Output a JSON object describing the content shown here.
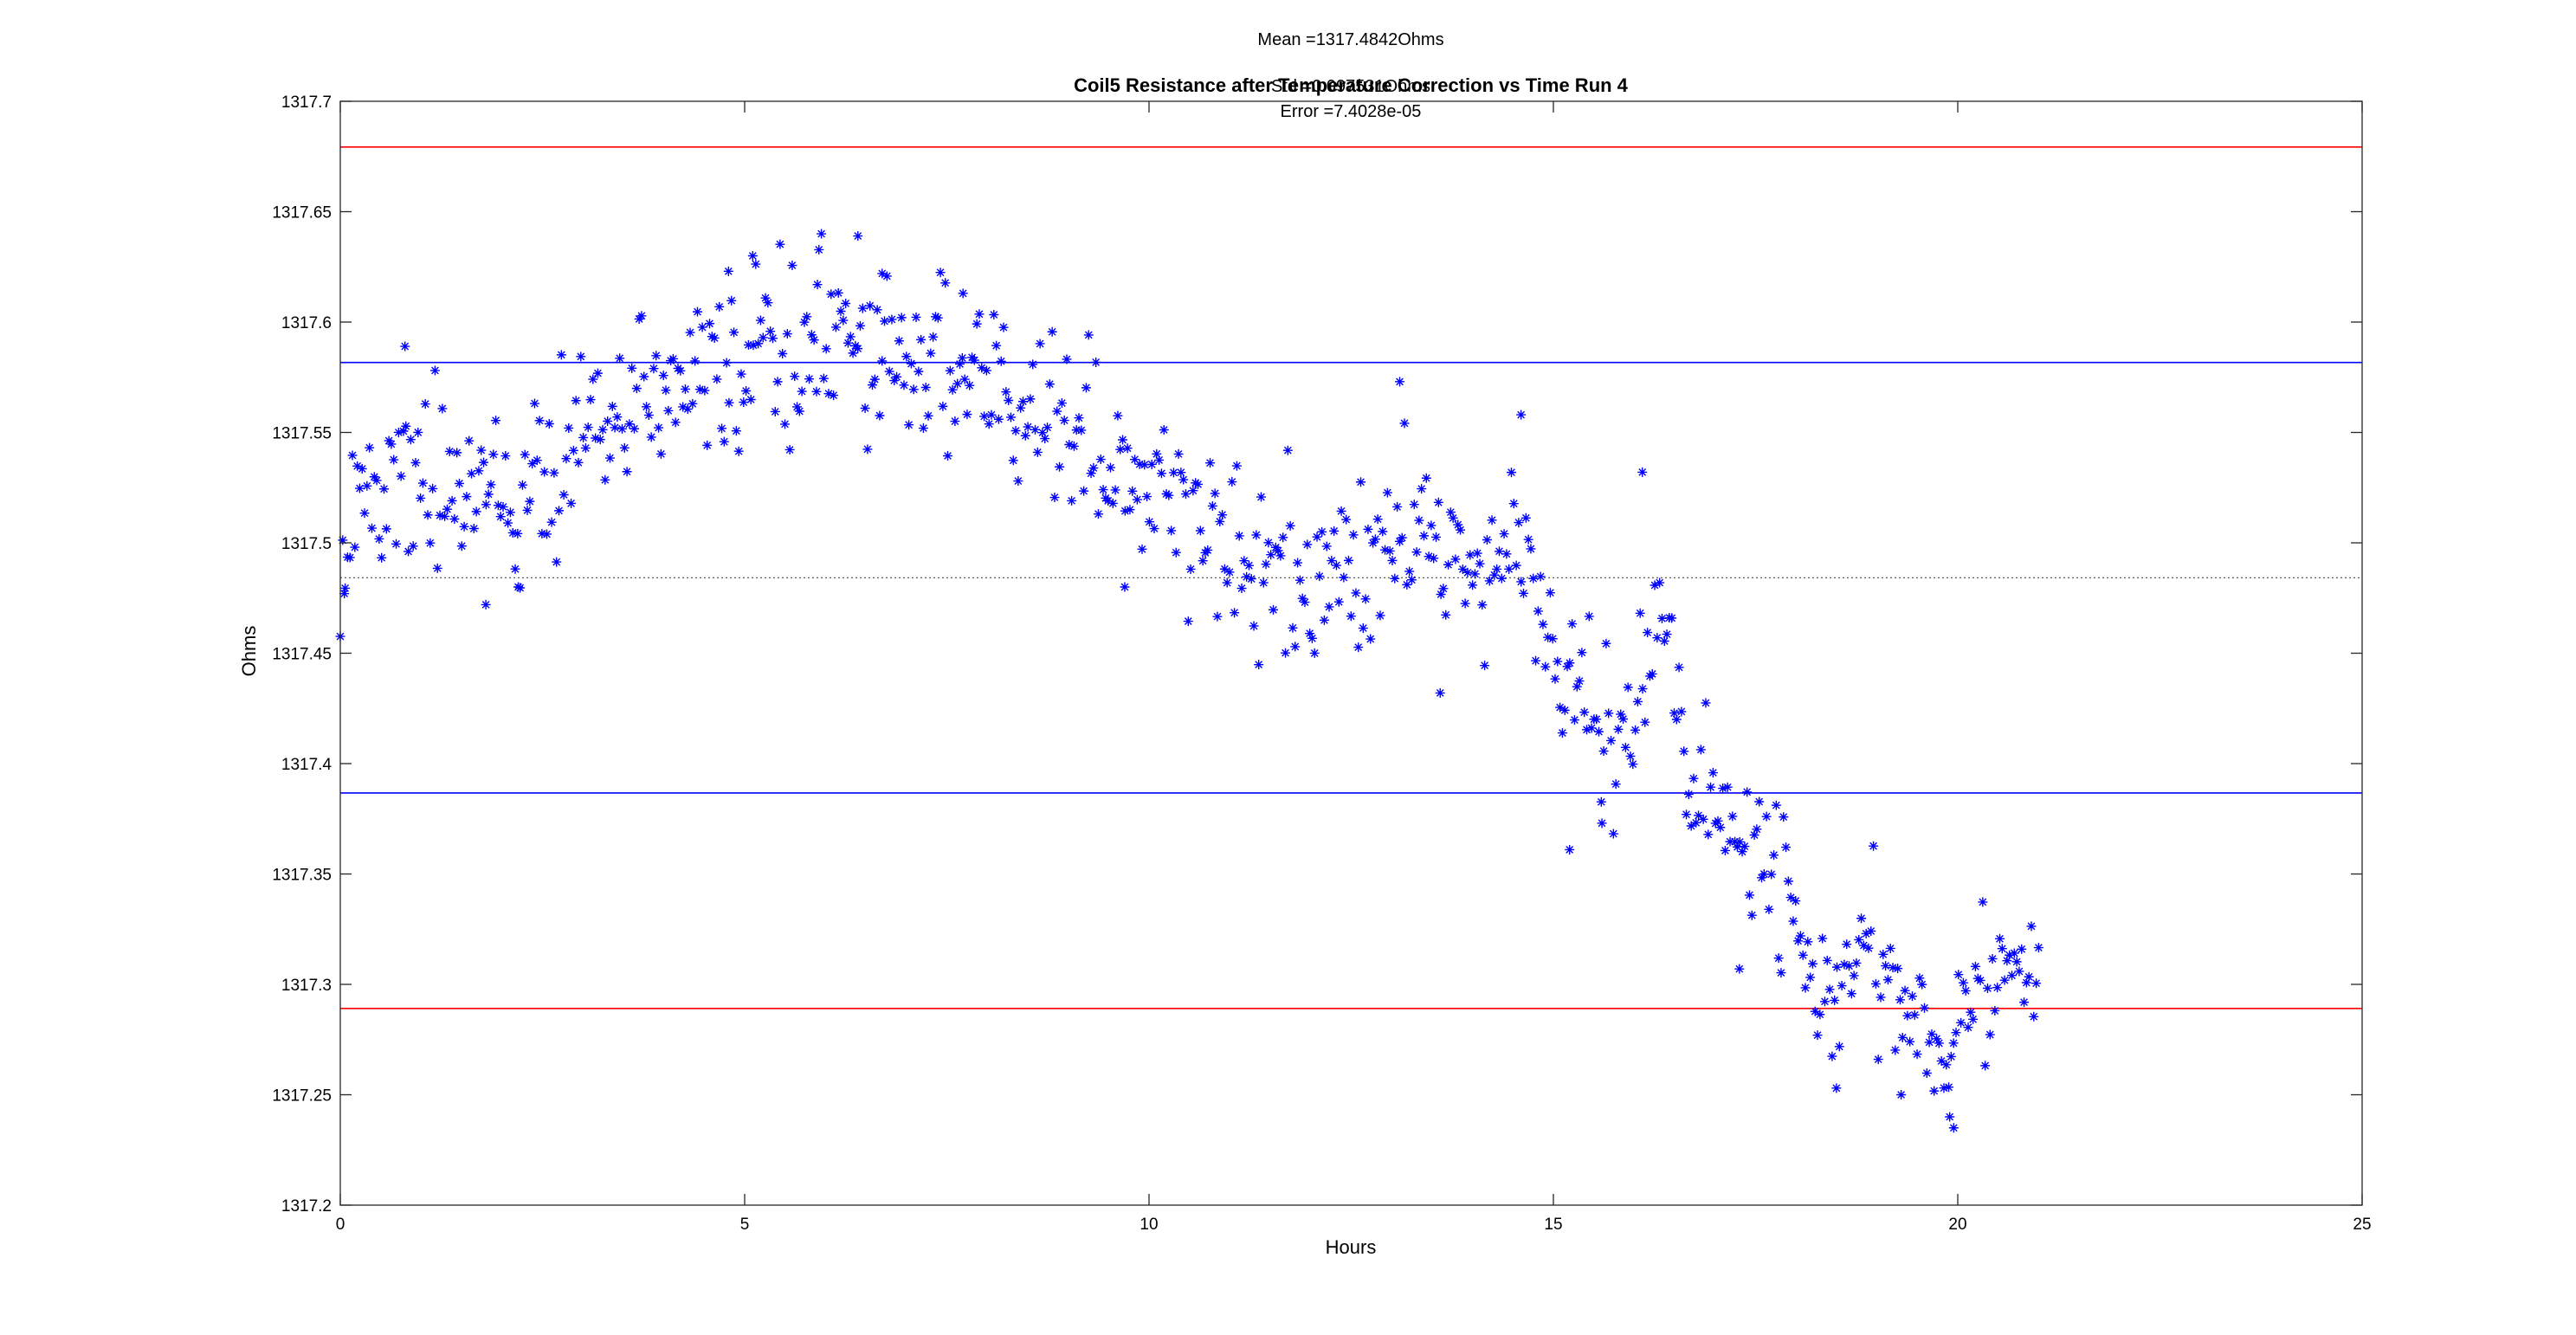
{
  "chart_data": {
    "type": "scatter",
    "title": "Coil5 Resistance after Temperature Correction vs Time Run 4",
    "xlabel": "Hours",
    "ylabel": "Ohms",
    "xlim": [
      0,
      25
    ],
    "ylim": [
      1317.2,
      1317.7
    ],
    "x_ticks": [
      "0",
      "5",
      "10",
      "15",
      "20",
      "25"
    ],
    "y_ticks": [
      "1317.2",
      "1317.25",
      "1317.3",
      "1317.35",
      "1317.4",
      "1317.45",
      "1317.5",
      "1317.55",
      "1317.6",
      "1317.65",
      "1317.7"
    ],
    "stats": {
      "mean": "Mean =1317.4842Ohms",
      "std": "Std =0.097531Ohms",
      "error": "Error =7.4028e-05"
    },
    "reference_lines": [
      {
        "y": 1317.6793,
        "color": "#ff0000",
        "style": "solid"
      },
      {
        "y": 1317.5817,
        "color": "#0000ff",
        "style": "solid"
      },
      {
        "y": 1317.4842,
        "color": "#444444",
        "style": "dotted"
      },
      {
        "y": 1317.3867,
        "color": "#0000ff",
        "style": "solid"
      },
      {
        "y": 1317.2891,
        "color": "#ff0000",
        "style": "solid"
      }
    ],
    "marker": {
      "symbol": "*",
      "color": "#0000ff"
    },
    "trend_points": [
      [
        0.0,
        1317.475
      ],
      [
        0.3,
        1317.515
      ],
      [
        0.8,
        1317.535
      ],
      [
        1.5,
        1317.53
      ],
      [
        2.0,
        1317.525
      ],
      [
        2.5,
        1317.535
      ],
      [
        3.0,
        1317.55
      ],
      [
        3.5,
        1317.56
      ],
      [
        4.0,
        1317.565
      ],
      [
        4.5,
        1317.575
      ],
      [
        5.0,
        1317.58
      ],
      [
        5.5,
        1317.585
      ],
      [
        6.0,
        1317.59
      ],
      [
        6.5,
        1317.592
      ],
      [
        7.0,
        1317.58
      ],
      [
        7.5,
        1317.575
      ],
      [
        8.0,
        1317.565
      ],
      [
        8.5,
        1317.56
      ],
      [
        9.0,
        1317.555
      ],
      [
        9.5,
        1317.535
      ],
      [
        10.0,
        1317.52
      ],
      [
        10.5,
        1317.51
      ],
      [
        11.0,
        1317.5
      ],
      [
        11.5,
        1317.495
      ],
      [
        12.0,
        1317.485
      ],
      [
        12.5,
        1317.48
      ],
      [
        13.0,
        1317.5
      ],
      [
        13.5,
        1317.51
      ],
      [
        14.0,
        1317.49
      ],
      [
        14.5,
        1317.5
      ],
      [
        15.0,
        1317.45
      ],
      [
        15.5,
        1317.415
      ],
      [
        16.0,
        1317.43
      ],
      [
        16.3,
        1317.47
      ],
      [
        16.6,
        1317.405
      ],
      [
        17.0,
        1317.385
      ],
      [
        17.5,
        1317.36
      ],
      [
        18.0,
        1317.345
      ],
      [
        18.3,
        1317.29
      ],
      [
        18.6,
        1317.3
      ],
      [
        19.0,
        1317.305
      ],
      [
        19.5,
        1317.29
      ],
      [
        19.8,
        1317.27
      ],
      [
        20.0,
        1317.285
      ],
      [
        20.5,
        1317.305
      ],
      [
        21.0,
        1317.31
      ]
    ],
    "noise_sd": 0.02,
    "n_points": 700,
    "x_end": 21.0,
    "outliers": [
      [
        6.4,
        1317.639
      ],
      [
        5.1,
        1317.63
      ],
      [
        4.8,
        1317.623
      ],
      [
        6.7,
        1317.622
      ],
      [
        5.9,
        1317.617
      ],
      [
        7.7,
        1317.613
      ],
      [
        0.8,
        1317.589
      ],
      [
        13.1,
        1317.573
      ],
      [
        14.6,
        1317.558
      ],
      [
        16.1,
        1317.532
      ],
      [
        1.8,
        1317.472
      ],
      [
        2.2,
        1317.48
      ],
      [
        9.7,
        1317.48
      ],
      [
        13.6,
        1317.432
      ],
      [
        15.2,
        1317.361
      ],
      [
        15.6,
        1317.373
      ],
      [
        17.3,
        1317.307
      ],
      [
        18.5,
        1317.253
      ],
      [
        19.3,
        1317.25
      ],
      [
        19.9,
        1317.24
      ],
      [
        19.95,
        1317.235
      ],
      [
        0.05,
        1317.477
      ]
    ]
  }
}
